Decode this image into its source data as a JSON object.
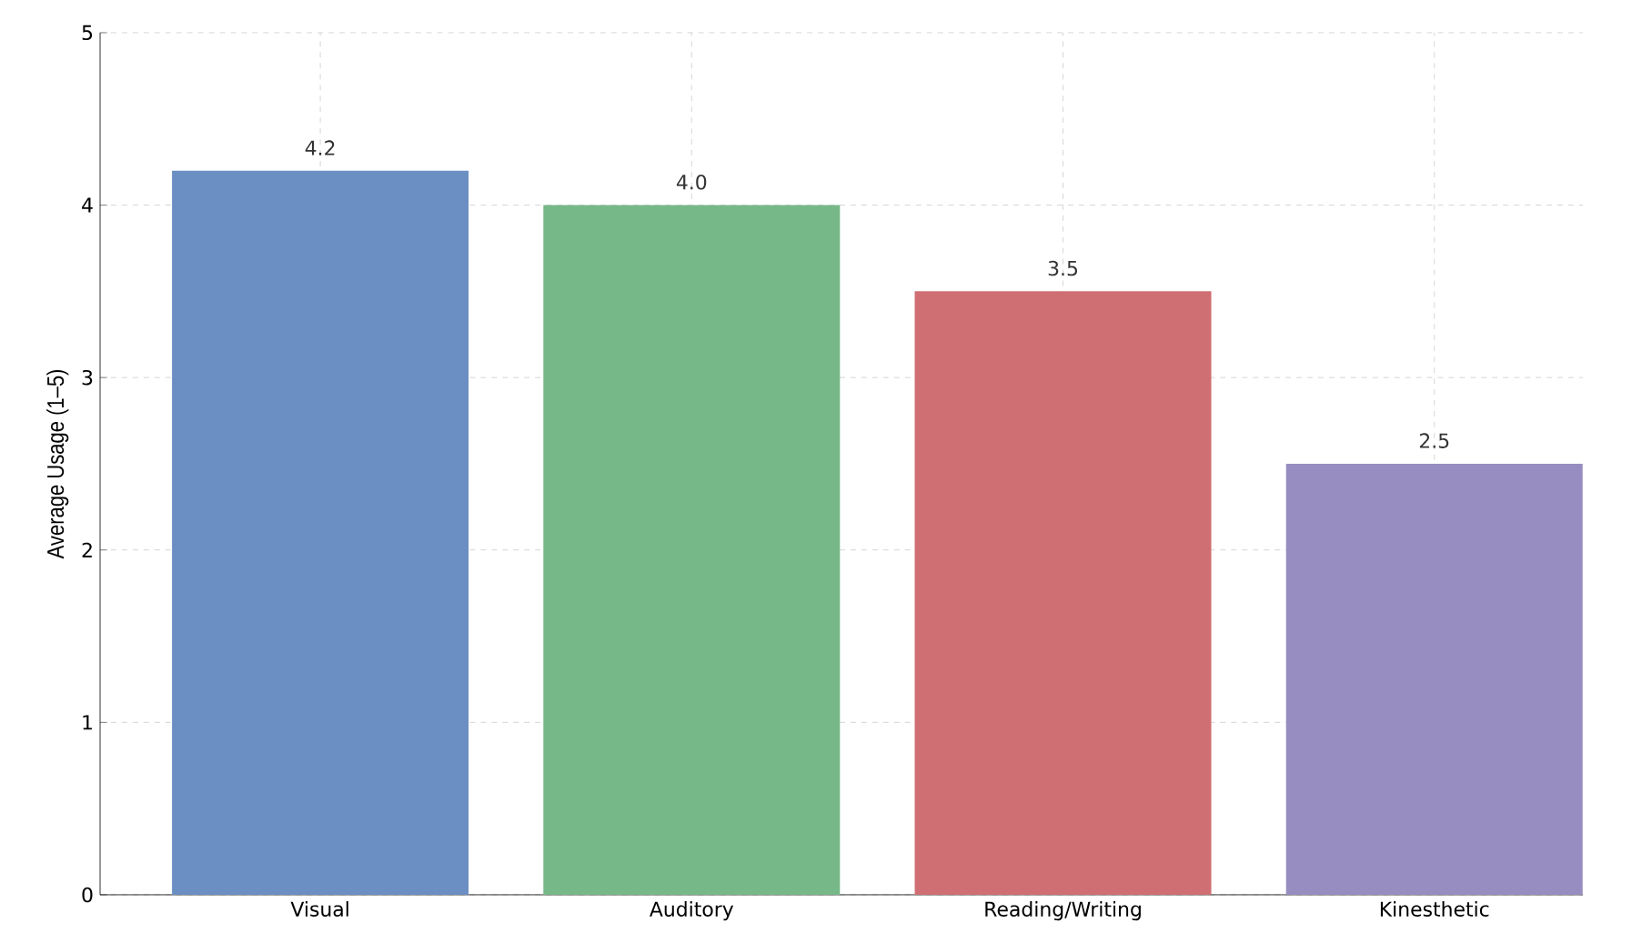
{
  "chart_data": {
    "type": "bar",
    "ylabel": "Average Usage (1–5)",
    "categories": [
      "Visual",
      "Auditory",
      "Reading/Writing",
      "Kinesthetic"
    ],
    "values": [
      4.2,
      4.0,
      3.5,
      2.5
    ],
    "colors": [
      "#6b8fc2",
      "#77b888",
      "#cf6f73",
      "#988dc0"
    ],
    "value_labels": [
      "4.2",
      "4.0",
      "3.5",
      "2.5"
    ],
    "ylim": [
      0,
      5
    ],
    "yticks": [
      0,
      1,
      2,
      3,
      4,
      5
    ],
    "grid": true
  }
}
